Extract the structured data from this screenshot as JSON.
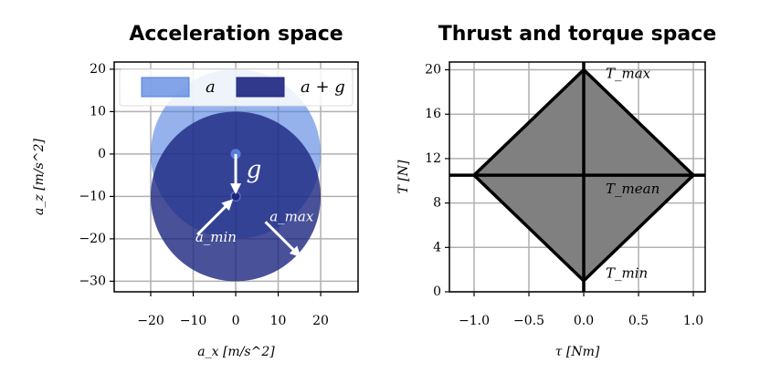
{
  "chart_data": [
    {
      "type": "circles",
      "title": "Acceleration space",
      "xlabel": "a_x [m/s^2]",
      "ylabel": "a_z [m/s^2]",
      "xlim": [
        -28.6,
        28.8
      ],
      "ylim": [
        -32.5,
        21.7
      ],
      "xticks": [
        {
          "value": -20,
          "label": "−20"
        },
        {
          "value": -10,
          "label": "−10"
        },
        0,
        10,
        20
      ],
      "yticks": [
        {
          "value": -30,
          "label": "−30"
        },
        {
          "value": -20,
          "label": "−20"
        },
        {
          "value": -10,
          "label": "−10"
        },
        0,
        10,
        20
      ],
      "grid": true,
      "legend": "top",
      "series": [
        {
          "name": "a",
          "color": "#4f7ee0",
          "center_x": 0,
          "center_y": 0,
          "radius": 20
        },
        {
          "name": "a + g",
          "color": "#1c2580",
          "center_x": 0,
          "center_y": -10,
          "radius": 20
        }
      ],
      "arrows": [
        {
          "x": [
            0,
            0
          ],
          "y": [
            0,
            -9
          ]
        },
        {
          "x": [
            -9,
            -1
          ],
          "y": [
            -19,
            -11
          ]
        },
        {
          "x": [
            7,
            15
          ],
          "y": [
            -16,
            -24
          ]
        }
      ],
      "annotations": [
        {
          "text": "g",
          "x": 2.5,
          "y": -4
        },
        {
          "text": "a_min",
          "x": -9.5,
          "y": -19.8
        },
        {
          "text": "a_max",
          "x": 8,
          "y": -15
        }
      ]
    },
    {
      "type": "polygon",
      "title": "Thrust and torque space",
      "xlabel": "τ [Nm]",
      "ylabel": "T [N]",
      "xlim": [
        -1.225,
        1.108
      ],
      "ylim": [
        0,
        20.7
      ],
      "xticks": [
        {
          "value": -1.0,
          "label": "−1.0"
        },
        {
          "value": -0.5,
          "label": "−0.5"
        },
        {
          "value": 0.0,
          "label": "0.0"
        },
        {
          "value": 0.5,
          "label": "0.5"
        },
        {
          "value": 1.0,
          "label": "1.0"
        }
      ],
      "yticks": [
        0,
        4,
        8,
        12,
        16,
        20
      ],
      "grid": true,
      "color": "#808080",
      "x": [
        0,
        1,
        0,
        -1
      ],
      "y": [
        20,
        10.5,
        1,
        10.5
      ],
      "hline": 10.5,
      "vline": 0,
      "annotations": [
        {
          "text": "T_max",
          "x": 0.2,
          "y": 19.6
        },
        {
          "text": "T_mean",
          "x": 0.2,
          "y": 9.2
        },
        {
          "text": "T_min",
          "x": 0.2,
          "y": 1.6
        }
      ]
    }
  ]
}
